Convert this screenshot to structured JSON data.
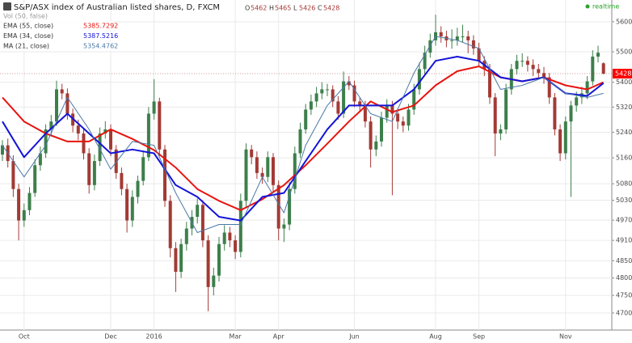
{
  "chart_data": {
    "type": "candlestick",
    "title": "S&P/ASX index of Australian listed shares, D, FXCM",
    "realtime_label": "realtime",
    "volume_label": "Vol (50, false)",
    "bar_info": [
      {
        "label": "O",
        "value": 5462
      },
      {
        "label": "H",
        "value": 5465
      },
      {
        "label": "L",
        "value": 5426
      },
      {
        "label": "C",
        "value": 5428
      }
    ],
    "last_price": 5428,
    "log_scale": true,
    "grid": true,
    "up_color": "#3d7f4b",
    "down_color": "#a33a35",
    "ylim": [
      4652,
      5674
    ],
    "yticks": [
      5600,
      5500,
      5400,
      5320,
      5240,
      5160,
      5080,
      5030,
      4970,
      4910,
      4850,
      4800,
      4750,
      4700
    ],
    "categories": [
      null,
      null,
      null,
      null,
      "Oct",
      null,
      null,
      null,
      null,
      null,
      null,
      null,
      null,
      null,
      null,
      null,
      null,
      null,
      null,
      null,
      "Dec",
      null,
      null,
      null,
      null,
      null,
      null,
      null,
      "2016",
      null,
      null,
      null,
      null,
      null,
      null,
      null,
      null,
      null,
      null,
      null,
      null,
      null,
      null,
      "Mar",
      null,
      null,
      null,
      null,
      null,
      null,
      null,
      "Apr",
      null,
      null,
      null,
      null,
      null,
      null,
      null,
      null,
      null,
      null,
      null,
      null,
      null,
      "Jun",
      null,
      null,
      null,
      null,
      null,
      null,
      null,
      null,
      null,
      null,
      null,
      null,
      null,
      null,
      "Aug",
      null,
      null,
      null,
      null,
      null,
      null,
      null,
      "Sep",
      null,
      null,
      null,
      null,
      null,
      null,
      null,
      null,
      null,
      null,
      null,
      null,
      null,
      null,
      null,
      "Nov",
      null,
      null,
      null,
      null,
      null,
      null,
      null
    ],
    "open": [
      5170,
      5199,
      5150,
      5064,
      4969,
      5000,
      5052,
      5137,
      5174,
      5249,
      5274,
      5377,
      5364,
      5299,
      5261,
      5236,
      5174,
      5076,
      5150,
      5236,
      5249,
      5186,
      5113,
      5064,
      4969,
      5040,
      5089,
      5162,
      5299,
      5338,
      5186,
      5028,
      4887,
      4818,
      4899,
      4945,
      4980,
      5016,
      4910,
      4774,
      4807,
      4899,
      4933,
      4910,
      4876,
      5028,
      5186,
      5162,
      5113,
      5101,
      5162,
      5076,
      4945,
      4957,
      5064,
      5174,
      5249,
      5312,
      5338,
      5364,
      5377,
      5377,
      5338,
      5299,
      5403,
      5390,
      5338,
      5325,
      5274,
      5186,
      5211,
      5286,
      5325,
      5299,
      5274,
      5261,
      5312,
      5377,
      5443,
      5497,
      5538,
      5565,
      5551,
      5538,
      5538,
      5551,
      5551,
      5538,
      5511,
      5470,
      5443,
      5351,
      5236,
      5249,
      5377,
      5443,
      5470,
      5470,
      5457,
      5443,
      5430,
      5416,
      5351,
      5249,
      5174,
      5274,
      5325,
      5351,
      5364,
      5403,
      5484,
      5462
    ],
    "high": [
      5215,
      5220,
      5168,
      5080,
      5020,
      5070,
      5155,
      5195,
      5265,
      5295,
      5405,
      5395,
      5380,
      5315,
      5280,
      5250,
      5190,
      5170,
      5255,
      5275,
      5265,
      5200,
      5130,
      5080,
      5060,
      5105,
      5180,
      5320,
      5410,
      5350,
      5200,
      5045,
      4905,
      4915,
      4965,
      5000,
      5035,
      5030,
      4925,
      4830,
      4920,
      4955,
      4950,
      4925,
      5050,
      5205,
      5200,
      5180,
      5130,
      5180,
      5175,
      5090,
      4975,
      5085,
      5195,
      5270,
      5330,
      5360,
      5385,
      5400,
      5395,
      5390,
      5355,
      5435,
      5420,
      5405,
      5350,
      5340,
      5290,
      5230,
      5305,
      5345,
      5340,
      5315,
      5290,
      5330,
      5395,
      5465,
      5520,
      5560,
      5624,
      5585,
      5570,
      5575,
      5580,
      5590,
      5570,
      5555,
      5530,
      5485,
      5460,
      5365,
      5265,
      5395,
      5460,
      5490,
      5495,
      5485,
      5475,
      5460,
      5450,
      5430,
      5365,
      5265,
      5290,
      5340,
      5370,
      5385,
      5420,
      5505,
      5520,
      5465
    ],
    "low": [
      5150,
      5130,
      5040,
      4910,
      4950,
      4985,
      5040,
      5120,
      5160,
      5230,
      5260,
      5345,
      5280,
      5240,
      5215,
      5155,
      5050,
      5060,
      5135,
      5220,
      5165,
      5095,
      5045,
      4933,
      4950,
      5020,
      5075,
      5150,
      5280,
      5165,
      5010,
      4860,
      4760,
      4800,
      4880,
      4925,
      4960,
      4890,
      4705,
      4750,
      4790,
      4880,
      4890,
      4855,
      4860,
      5010,
      5140,
      5095,
      5080,
      5085,
      5055,
      4910,
      4905,
      4940,
      5050,
      5160,
      5235,
      5295,
      5320,
      5345,
      5355,
      5320,
      5280,
      5285,
      5375,
      5320,
      5305,
      5255,
      5130,
      5165,
      5195,
      5270,
      5045,
      5250,
      5240,
      5245,
      5295,
      5360,
      5425,
      5480,
      5520,
      5530,
      5515,
      5510,
      5520,
      5530,
      5495,
      5490,
      5450,
      5420,
      5330,
      5165,
      5215,
      5235,
      5360,
      5425,
      5450,
      5435,
      5420,
      5410,
      5395,
      5330,
      5230,
      5150,
      5155,
      5040,
      5305,
      5330,
      5345,
      5390,
      5465,
      5426
    ],
    "close": [
      5199,
      5150,
      5064,
      4969,
      5000,
      5052,
      5137,
      5174,
      5249,
      5274,
      5377,
      5364,
      5299,
      5261,
      5236,
      5174,
      5076,
      5150,
      5236,
      5249,
      5186,
      5113,
      5064,
      4969,
      5040,
      5089,
      5162,
      5299,
      5338,
      5186,
      5028,
      4887,
      4818,
      4899,
      4945,
      4980,
      5016,
      4910,
      4774,
      4807,
      4899,
      4933,
      4910,
      4876,
      5028,
      5186,
      5162,
      5113,
      5101,
      5162,
      5076,
      4945,
      4957,
      5064,
      5174,
      5249,
      5312,
      5338,
      5364,
      5377,
      5377,
      5338,
      5299,
      5403,
      5390,
      5338,
      5325,
      5274,
      5186,
      5211,
      5286,
      5325,
      5299,
      5274,
      5261,
      5312,
      5377,
      5443,
      5497,
      5538,
      5565,
      5551,
      5538,
      5538,
      5551,
      5551,
      5538,
      5511,
      5470,
      5443,
      5351,
      5236,
      5249,
      5377,
      5443,
      5470,
      5470,
      5457,
      5443,
      5430,
      5416,
      5351,
      5249,
      5174,
      5274,
      5325,
      5351,
      5364,
      5403,
      5484,
      5497,
      5428
    ],
    "series": [
      {
        "name": "EMA (55, close)",
        "last_value": 5385.7292,
        "color": "#e8140f",
        "width": 2,
        "x": [
          0,
          4,
          8,
          12,
          16,
          20,
          24,
          28,
          32,
          36,
          40,
          44,
          48,
          52,
          56,
          60,
          64,
          68,
          72,
          76,
          80,
          84,
          88,
          92,
          96,
          100,
          104,
          108,
          111
        ],
        "values": [
          5351,
          5274,
          5236,
          5211,
          5211,
          5249,
          5219,
          5184,
          5130,
          5064,
          5028,
          5000,
          5033,
          5076,
          5137,
          5204,
          5274,
          5338,
          5304,
          5325,
          5390,
          5436,
          5452,
          5416,
          5403,
          5416,
          5390,
          5377,
          5400
        ]
      },
      {
        "name": "EMA (34, close)",
        "last_value": 5387.5216,
        "color": "#1414d8",
        "width": 2,
        "x": [
          0,
          4,
          8,
          12,
          16,
          20,
          24,
          28,
          32,
          36,
          40,
          44,
          48,
          52,
          56,
          60,
          64,
          68,
          72,
          76,
          80,
          84,
          88,
          92,
          96,
          100,
          104,
          108,
          111
        ],
        "values": [
          5274,
          5162,
          5236,
          5299,
          5236,
          5174,
          5186,
          5174,
          5076,
          5040,
          4980,
          4969,
          5040,
          5052,
          5150,
          5249,
          5325,
          5325,
          5325,
          5377,
          5470,
          5484,
          5470,
          5416,
          5403,
          5416,
          5364,
          5356,
          5397
        ]
      },
      {
        "name": "MA (21, close)",
        "last_value": 5354.4762,
        "color": "#4b78a8",
        "width": 1,
        "x": [
          0,
          4,
          8,
          12,
          16,
          20,
          24,
          28,
          32,
          36,
          40,
          44,
          48,
          52,
          56,
          60,
          64,
          68,
          72,
          76,
          80,
          84,
          88,
          92,
          96,
          100,
          104,
          108,
          111
        ],
        "values": [
          5199,
          5101,
          5199,
          5351,
          5249,
          5125,
          5211,
          5199,
          5052,
          4933,
          4957,
          4957,
          5101,
          4992,
          5199,
          5325,
          5403,
          5299,
          5274,
          5430,
          5551,
          5538,
          5511,
          5377,
          5390,
          5416,
          5364,
          5351,
          5364
        ]
      }
    ]
  }
}
